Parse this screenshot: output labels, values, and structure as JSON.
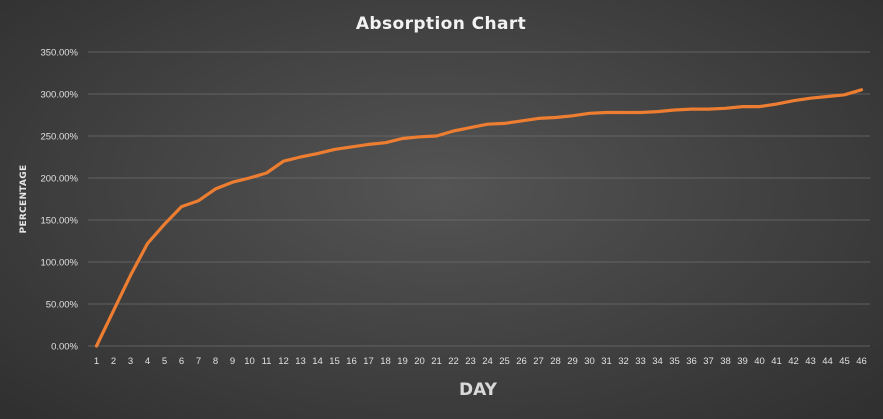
{
  "chart_data": {
    "type": "line",
    "title": "Absorption Chart",
    "xlabel": "DAY",
    "ylabel": "PERCENTAGE",
    "ylim": [
      0,
      350
    ],
    "yticks": [
      "0.00%",
      "50.00%",
      "100.00%",
      "150.00%",
      "200.00%",
      "250.00%",
      "300.00%",
      "350.00%"
    ],
    "grid": true,
    "x": [
      1,
      2,
      3,
      4,
      5,
      6,
      7,
      8,
      9,
      10,
      11,
      12,
      13,
      14,
      15,
      16,
      17,
      18,
      19,
      20,
      21,
      22,
      23,
      24,
      25,
      26,
      27,
      28,
      29,
      30,
      31,
      32,
      33,
      34,
      35,
      36,
      37,
      38,
      39,
      40,
      41,
      42,
      43,
      44,
      45,
      46
    ],
    "series": [
      {
        "color": "#ed7d31",
        "values": [
          0,
          42,
          84,
          122,
          145,
          166,
          173,
          187,
          195,
          200,
          206,
          220,
          225,
          229,
          234,
          237,
          240,
          242,
          247,
          249,
          250,
          256,
          260,
          264,
          265,
          268,
          271,
          272,
          274,
          277,
          278,
          278,
          278,
          279,
          281,
          282,
          282,
          283,
          285,
          285,
          288,
          292,
          295,
          297,
          299,
          305
        ]
      }
    ]
  }
}
